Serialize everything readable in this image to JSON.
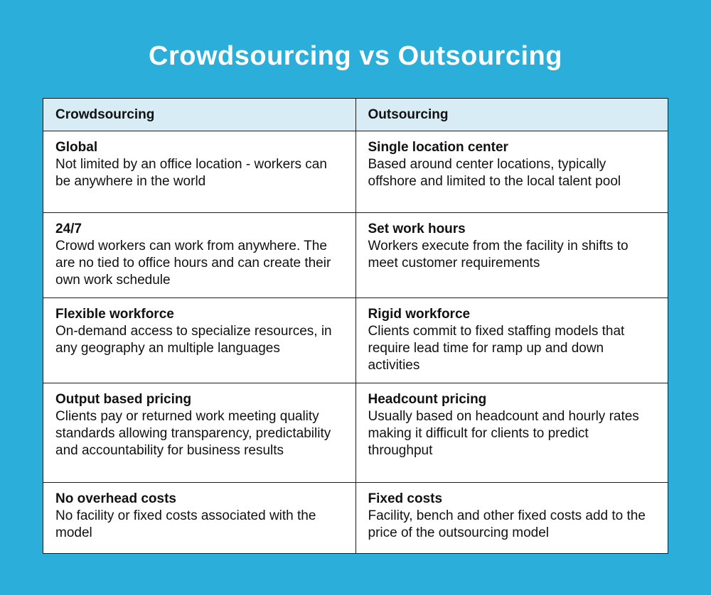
{
  "page": {
    "background_color": "#2BAEDA",
    "title_color": "#FFFFFF"
  },
  "chart_data": {
    "type": "table",
    "title": "Crowdsourcing vs Outsourcing",
    "columns": [
      "Crowdsourcing",
      "Outsourcing"
    ],
    "header_bg": "#D8ECF6",
    "cell_bg": "#FFFFFF",
    "border_color": "#1C1C1C",
    "rows": [
      {
        "left": {
          "heading": "Global",
          "body": "Not limited by an office location - workers can be anywhere in the world"
        },
        "right": {
          "heading": "Single location center",
          "body": "Based around center locations, typically offshore and limited to the local talent pool"
        }
      },
      {
        "left": {
          "heading": "24/7",
          "body": "Crowd workers can work from anywhere. The are no tied to office hours and can create their own work schedule"
        },
        "right": {
          "heading": "Set work hours",
          "body": "Workers execute from the facility in shifts to meet customer requirements"
        }
      },
      {
        "left": {
          "heading": "Flexible workforce",
          "body": "On-demand access to specialize resources, in any geography an multiple languages"
        },
        "right": {
          "heading": "Rigid workforce",
          "body": "Clients commit to fixed staffing models that require lead time for ramp up and down activities"
        }
      },
      {
        "left": {
          "heading": "Output based pricing",
          "body": "Clients pay or returned work meeting quality standards allowing transparency, predictability and accountability for business results"
        },
        "right": {
          "heading": "Headcount pricing",
          "body": "Usually based on headcount and hourly rates making it difficult for clients to predict throughput"
        }
      },
      {
        "left": {
          "heading": "No overhead costs",
          "body": "No facility or fixed costs associated with the model"
        },
        "right": {
          "heading": "Fixed costs",
          "body": "Facility, bench and other fixed costs add to the price of the outsourcing model"
        }
      }
    ]
  }
}
